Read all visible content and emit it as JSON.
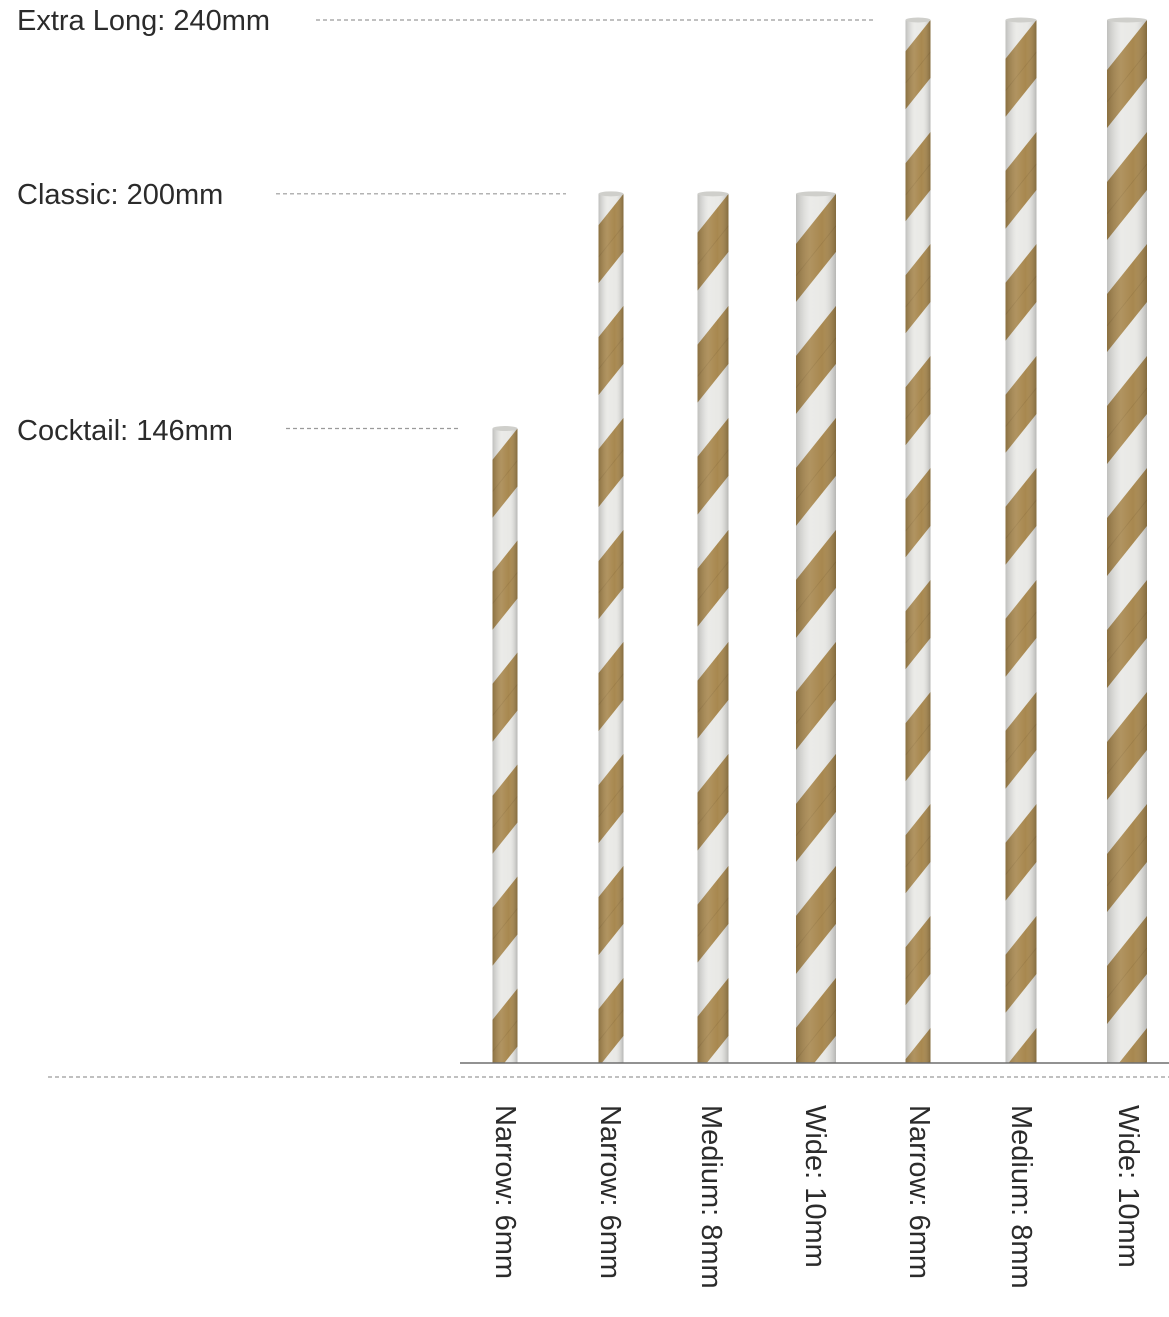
{
  "length_labels": [
    {
      "name": "Extra Long",
      "text": "Extra Long: 240mm",
      "mm": 240
    },
    {
      "name": "Classic",
      "text": "Classic: 200mm",
      "mm": 200
    },
    {
      "name": "Cocktail",
      "text": "Cocktail: 146mm",
      "mm": 146
    }
  ],
  "straws": [
    {
      "text": "Narrow: 6mm",
      "length_mm": 146,
      "diameter_mm": 6
    },
    {
      "text": "Narrow: 6mm",
      "length_mm": 200,
      "diameter_mm": 6
    },
    {
      "text": "Medium: 8mm",
      "length_mm": 200,
      "diameter_mm": 8
    },
    {
      "text": "Wide: 10mm",
      "length_mm": 200,
      "diameter_mm": 10
    },
    {
      "text": "Narrow: 6mm",
      "length_mm": 240,
      "diameter_mm": 6
    },
    {
      "text": "Medium: 8mm",
      "length_mm": 240,
      "diameter_mm": 8
    },
    {
      "text": "Wide: 10mm",
      "length_mm": 240,
      "diameter_mm": 10
    }
  ],
  "colors": {
    "stripe": "#a8884f",
    "stripe_dark": "#8f7240",
    "paper": "#e9e9e6",
    "paper_shade": "#cfcfcb",
    "text": "#2b2b2b",
    "guide": "#9a9a9a",
    "baseline": "#6e6e6e"
  }
}
